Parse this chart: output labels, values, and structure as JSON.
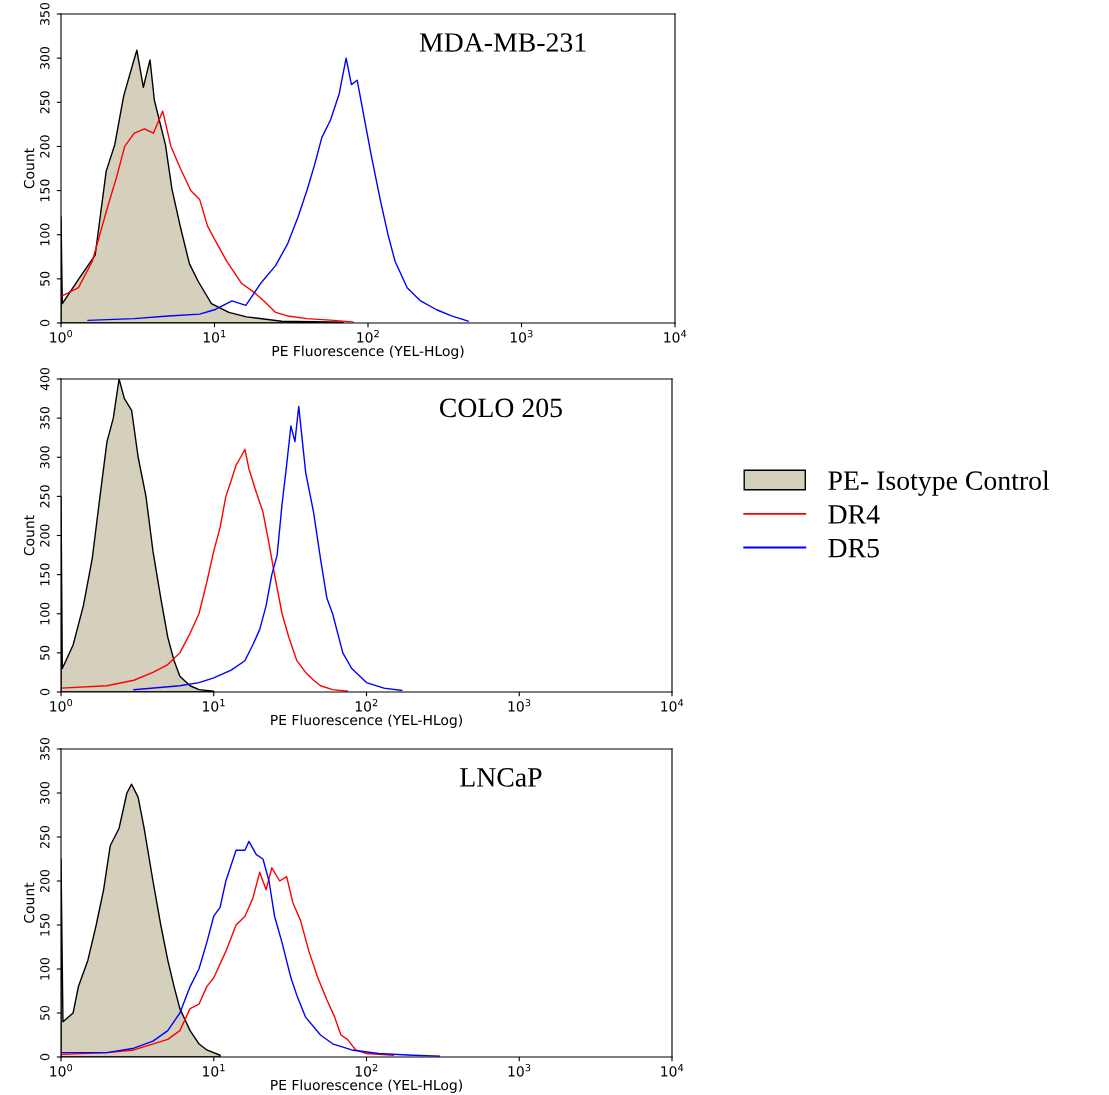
{
  "chart_data": [
    {
      "type": "line",
      "title": "MDA-MB-231",
      "xlabel": "PE Fluorescence (YEL-HLog)",
      "ylabel": "Count",
      "log": "x",
      "grid": false,
      "legend": false,
      "xlim": [
        1,
        10000
      ],
      "xticks": [
        {
          "value": 1,
          "label": "10$^{0}$"
        },
        {
          "value": 10,
          "label": "10$^{1}$"
        },
        {
          "value": 100,
          "label": "10$^{2}$"
        },
        {
          "value": 1000,
          "label": "10$^{3}$"
        },
        {
          "value": 10000,
          "label": "10$^{4}$"
        }
      ],
      "ylim": [
        0,
        350
      ],
      "yticks": [
        0,
        50,
        100,
        150,
        200,
        250,
        300,
        350
      ],
      "series": [
        {
          "type": "area",
          "color": "#d4d0bc",
          "x": [
            1.0,
            1.02,
            1.33,
            1.67,
            1.97,
            2.24,
            2.56,
            2.92,
            3.12,
            3.44,
            3.8,
            4.06,
            4.79,
            5.28,
            6.03,
            6.87,
            7.84,
            9.55,
            12.4,
            16.2,
            27.4,
            68.7
          ],
          "values": [
            120,
            22,
            52,
            77,
            172,
            202,
            257,
            292,
            309,
            267,
            298,
            252,
            202,
            152,
            107,
            67,
            47,
            22,
            12,
            7,
            2,
            1
          ]
        },
        {
          "color": "#ff0000",
          "x": [
            1.0,
            1.3,
            1.6,
            2.0,
            2.3,
            2.6,
            3.0,
            3.5,
            4.0,
            4.6,
            5.2,
            6,
            7,
            8,
            9,
            10,
            12,
            15,
            18,
            21,
            25,
            30,
            40,
            60,
            80
          ],
          "values": [
            30,
            40,
            70,
            130,
            165,
            200,
            215,
            220,
            215,
            240,
            200,
            175,
            150,
            140,
            110,
            95,
            70,
            45,
            35,
            25,
            12,
            8,
            5,
            3,
            1
          ]
        },
        {
          "color": "#0000ff",
          "x": [
            1.5,
            3,
            5,
            8,
            10,
            13,
            16,
            20,
            25,
            30,
            35,
            40,
            45,
            50,
            57,
            65,
            72,
            78,
            85,
            95,
            105,
            120,
            135,
            150,
            180,
            220,
            280,
            350,
            450
          ],
          "values": [
            3,
            5,
            8,
            10,
            15,
            25,
            20,
            45,
            65,
            90,
            120,
            150,
            180,
            210,
            230,
            260,
            300,
            270,
            275,
            230,
            190,
            140,
            100,
            70,
            40,
            25,
            15,
            8,
            2
          ]
        }
      ]
    },
    {
      "type": "line",
      "title": "COLO 205",
      "xlabel": "PE Fluorescence (YEL-HLog)",
      "ylabel": "Count",
      "log": "x",
      "grid": false,
      "legend": "right",
      "xlim": [
        1,
        10000
      ],
      "xticks": [
        {
          "value": 1,
          "label": "10$^{0}$"
        },
        {
          "value": 10,
          "label": "10$^{1}$"
        },
        {
          "value": 100,
          "label": "10$^{2}$"
        },
        {
          "value": 1000,
          "label": "10$^{3}$"
        },
        {
          "value": 10000,
          "label": "10$^{4}$"
        }
      ],
      "ylim": [
        0,
        400
      ],
      "yticks": [
        0,
        50,
        100,
        150,
        200,
        250,
        300,
        350,
        400
      ],
      "series": [
        {
          "name": "PE- Isotype Control",
          "type": "area",
          "color": "#d4d0bc",
          "x": [
            1.0,
            1.02,
            1.2,
            1.4,
            1.6,
            1.8,
            2.0,
            2.2,
            2.4,
            2.6,
            2.9,
            3.2,
            3.6,
            4.0,
            4.5,
            5,
            5.5,
            6,
            7,
            8,
            10
          ],
          "values": [
            250,
            30,
            60,
            110,
            170,
            250,
            320,
            350,
            400,
            375,
            360,
            300,
            250,
            180,
            120,
            70,
            40,
            20,
            8,
            3,
            1
          ]
        },
        {
          "name": "DR4",
          "color": "#ff0000",
          "x": [
            1,
            2,
            3,
            4,
            5,
            6,
            7,
            8,
            9,
            10,
            11,
            12,
            13,
            14,
            15,
            16,
            17,
            19,
            21,
            23,
            25,
            28,
            31,
            35,
            40,
            45,
            50,
            60,
            75
          ],
          "values": [
            5,
            8,
            15,
            25,
            35,
            50,
            75,
            100,
            140,
            180,
            210,
            250,
            270,
            290,
            300,
            310,
            285,
            255,
            230,
            190,
            150,
            100,
            70,
            40,
            25,
            15,
            8,
            3,
            1
          ]
        },
        {
          "name": "DR5",
          "color": "#0000ff",
          "x": [
            3,
            6,
            8,
            10,
            13,
            16,
            18,
            20,
            22,
            24,
            26,
            28,
            30,
            32,
            34,
            36,
            40,
            45,
            50,
            55,
            60,
            70,
            80,
            100,
            130,
            170
          ],
          "values": [
            3,
            8,
            12,
            18,
            28,
            40,
            60,
            80,
            110,
            150,
            175,
            240,
            290,
            340,
            320,
            365,
            280,
            230,
            170,
            120,
            100,
            50,
            30,
            12,
            5,
            2
          ]
        }
      ]
    },
    {
      "type": "line",
      "title": "LNCaP",
      "xlabel": "PE Fluorescence (YEL-HLog)",
      "ylabel": "Count",
      "log": "x",
      "grid": false,
      "legend": false,
      "xlim": [
        1,
        10000
      ],
      "xticks": [
        {
          "value": 1,
          "label": "10$^{0}$"
        },
        {
          "value": 10,
          "label": "10$^{1}$"
        },
        {
          "value": 100,
          "label": "10$^{2}$"
        },
        {
          "value": 1000,
          "label": "10$^{3}$"
        },
        {
          "value": 10000,
          "label": "10$^{4}$"
        }
      ],
      "ylim": [
        0,
        350
      ],
      "yticks": [
        0,
        50,
        100,
        150,
        200,
        250,
        300,
        350
      ],
      "series": [
        {
          "type": "area",
          "color": "#d4d0bc",
          "x": [
            1.0,
            1.03,
            1.2,
            1.3,
            1.5,
            1.7,
            1.9,
            2.1,
            2.4,
            2.7,
            2.9,
            3.2,
            3.5,
            4.0,
            4.5,
            5.0,
            5.5,
            6,
            7,
            8,
            9,
            11
          ],
          "values": [
            225,
            40,
            50,
            80,
            110,
            150,
            190,
            240,
            260,
            300,
            310,
            295,
            260,
            200,
            150,
            110,
            80,
            55,
            30,
            15,
            8,
            2
          ]
        },
        {
          "color": "#ff0000",
          "x": [
            1,
            2,
            3,
            5,
            6,
            7,
            8,
            9,
            10,
            12,
            14,
            16,
            18,
            20,
            22,
            24,
            27,
            30,
            33,
            37,
            42,
            48,
            55,
            62,
            68,
            75,
            85,
            100,
            150
          ],
          "values": [
            3,
            5,
            8,
            20,
            30,
            55,
            60,
            80,
            90,
            120,
            150,
            160,
            180,
            210,
            190,
            215,
            200,
            205,
            175,
            155,
            120,
            90,
            65,
            45,
            25,
            20,
            8,
            4,
            2
          ]
        },
        {
          "color": "#0000ff",
          "x": [
            1,
            2,
            3,
            4,
            5,
            6,
            7,
            8,
            9,
            10,
            11,
            12,
            14,
            16,
            17,
            19,
            21,
            23,
            25,
            28,
            32,
            35,
            40,
            50,
            60,
            80,
            120,
            200,
            300
          ],
          "values": [
            5,
            5,
            10,
            18,
            30,
            50,
            80,
            100,
            130,
            160,
            170,
            200,
            235,
            235,
            245,
            230,
            225,
            200,
            160,
            130,
            90,
            70,
            45,
            25,
            15,
            8,
            4,
            2,
            1
          ]
        }
      ]
    }
  ]
}
